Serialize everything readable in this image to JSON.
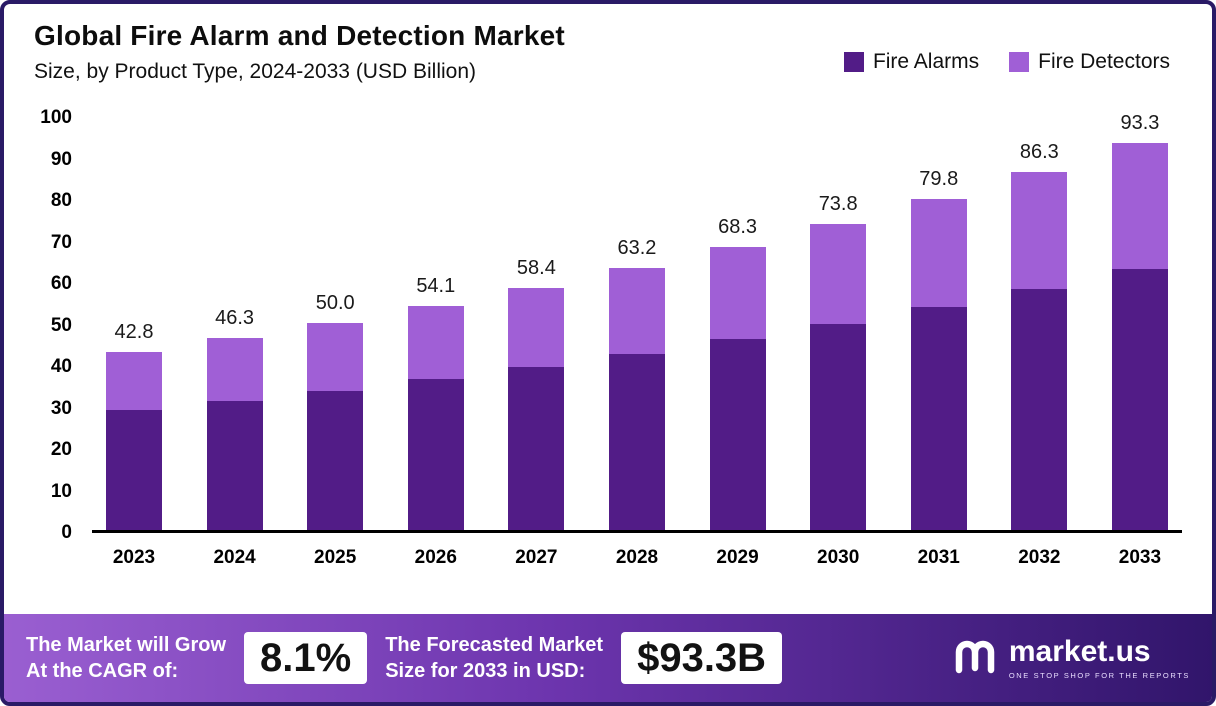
{
  "header": {
    "title": "Global Fire Alarm and Detection Market",
    "subtitle": "Size, by Product Type, 2024-2033 (USD Billion)"
  },
  "legend": {
    "alarms_label": "Fire Alarms",
    "detectors_label": "Fire Detectors"
  },
  "colors": {
    "fire_alarms": "#521c87",
    "fire_detectors": "#a05fd6",
    "axis": "#000000",
    "border": "#2a1a66"
  },
  "chart_data": {
    "type": "bar",
    "stacked": true,
    "title": "Global Fire Alarm and Detection Market Size, by Product Type, 2024-2033 (USD Billion)",
    "categories": [
      "2023",
      "2024",
      "2025",
      "2026",
      "2027",
      "2028",
      "2029",
      "2030",
      "2031",
      "2032",
      "2033"
    ],
    "series": [
      {
        "name": "Fire Alarms",
        "color": "#521c87",
        "values": [
          28.8,
          31.2,
          33.6,
          36.4,
          39.3,
          42.5,
          46.0,
          49.6,
          53.7,
          58.1,
          62.8
        ]
      },
      {
        "name": "Fire Detectors",
        "color": "#a05fd6",
        "values": [
          14.0,
          15.1,
          16.4,
          17.7,
          19.1,
          20.7,
          22.3,
          24.2,
          26.1,
          28.2,
          30.5
        ]
      }
    ],
    "totals": [
      42.8,
      46.3,
      50.0,
      54.1,
      58.4,
      63.2,
      68.3,
      73.8,
      79.8,
      86.3,
      93.3
    ],
    "total_labels": [
      "42.8",
      "46.3",
      "50.0",
      "54.1",
      "58.4",
      "63.2",
      "68.3",
      "73.8",
      "79.8",
      "86.3",
      "93.3"
    ],
    "ylim": [
      0,
      100
    ],
    "yticks": [
      0,
      10,
      20,
      30,
      40,
      50,
      60,
      70,
      80,
      90,
      100
    ],
    "grid": false,
    "legend_position": "top-right"
  },
  "footer": {
    "cagr_label_line1": "The Market will Grow",
    "cagr_label_line2": "At the CAGR of:",
    "cagr_value": "8.1%",
    "forecast_label_line1": "The Forecasted Market",
    "forecast_label_line2": "Size for 2033 in USD:",
    "forecast_value": "$93.3B",
    "brand_name": "market.us",
    "brand_tagline": "ONE STOP SHOP FOR THE REPORTS"
  }
}
